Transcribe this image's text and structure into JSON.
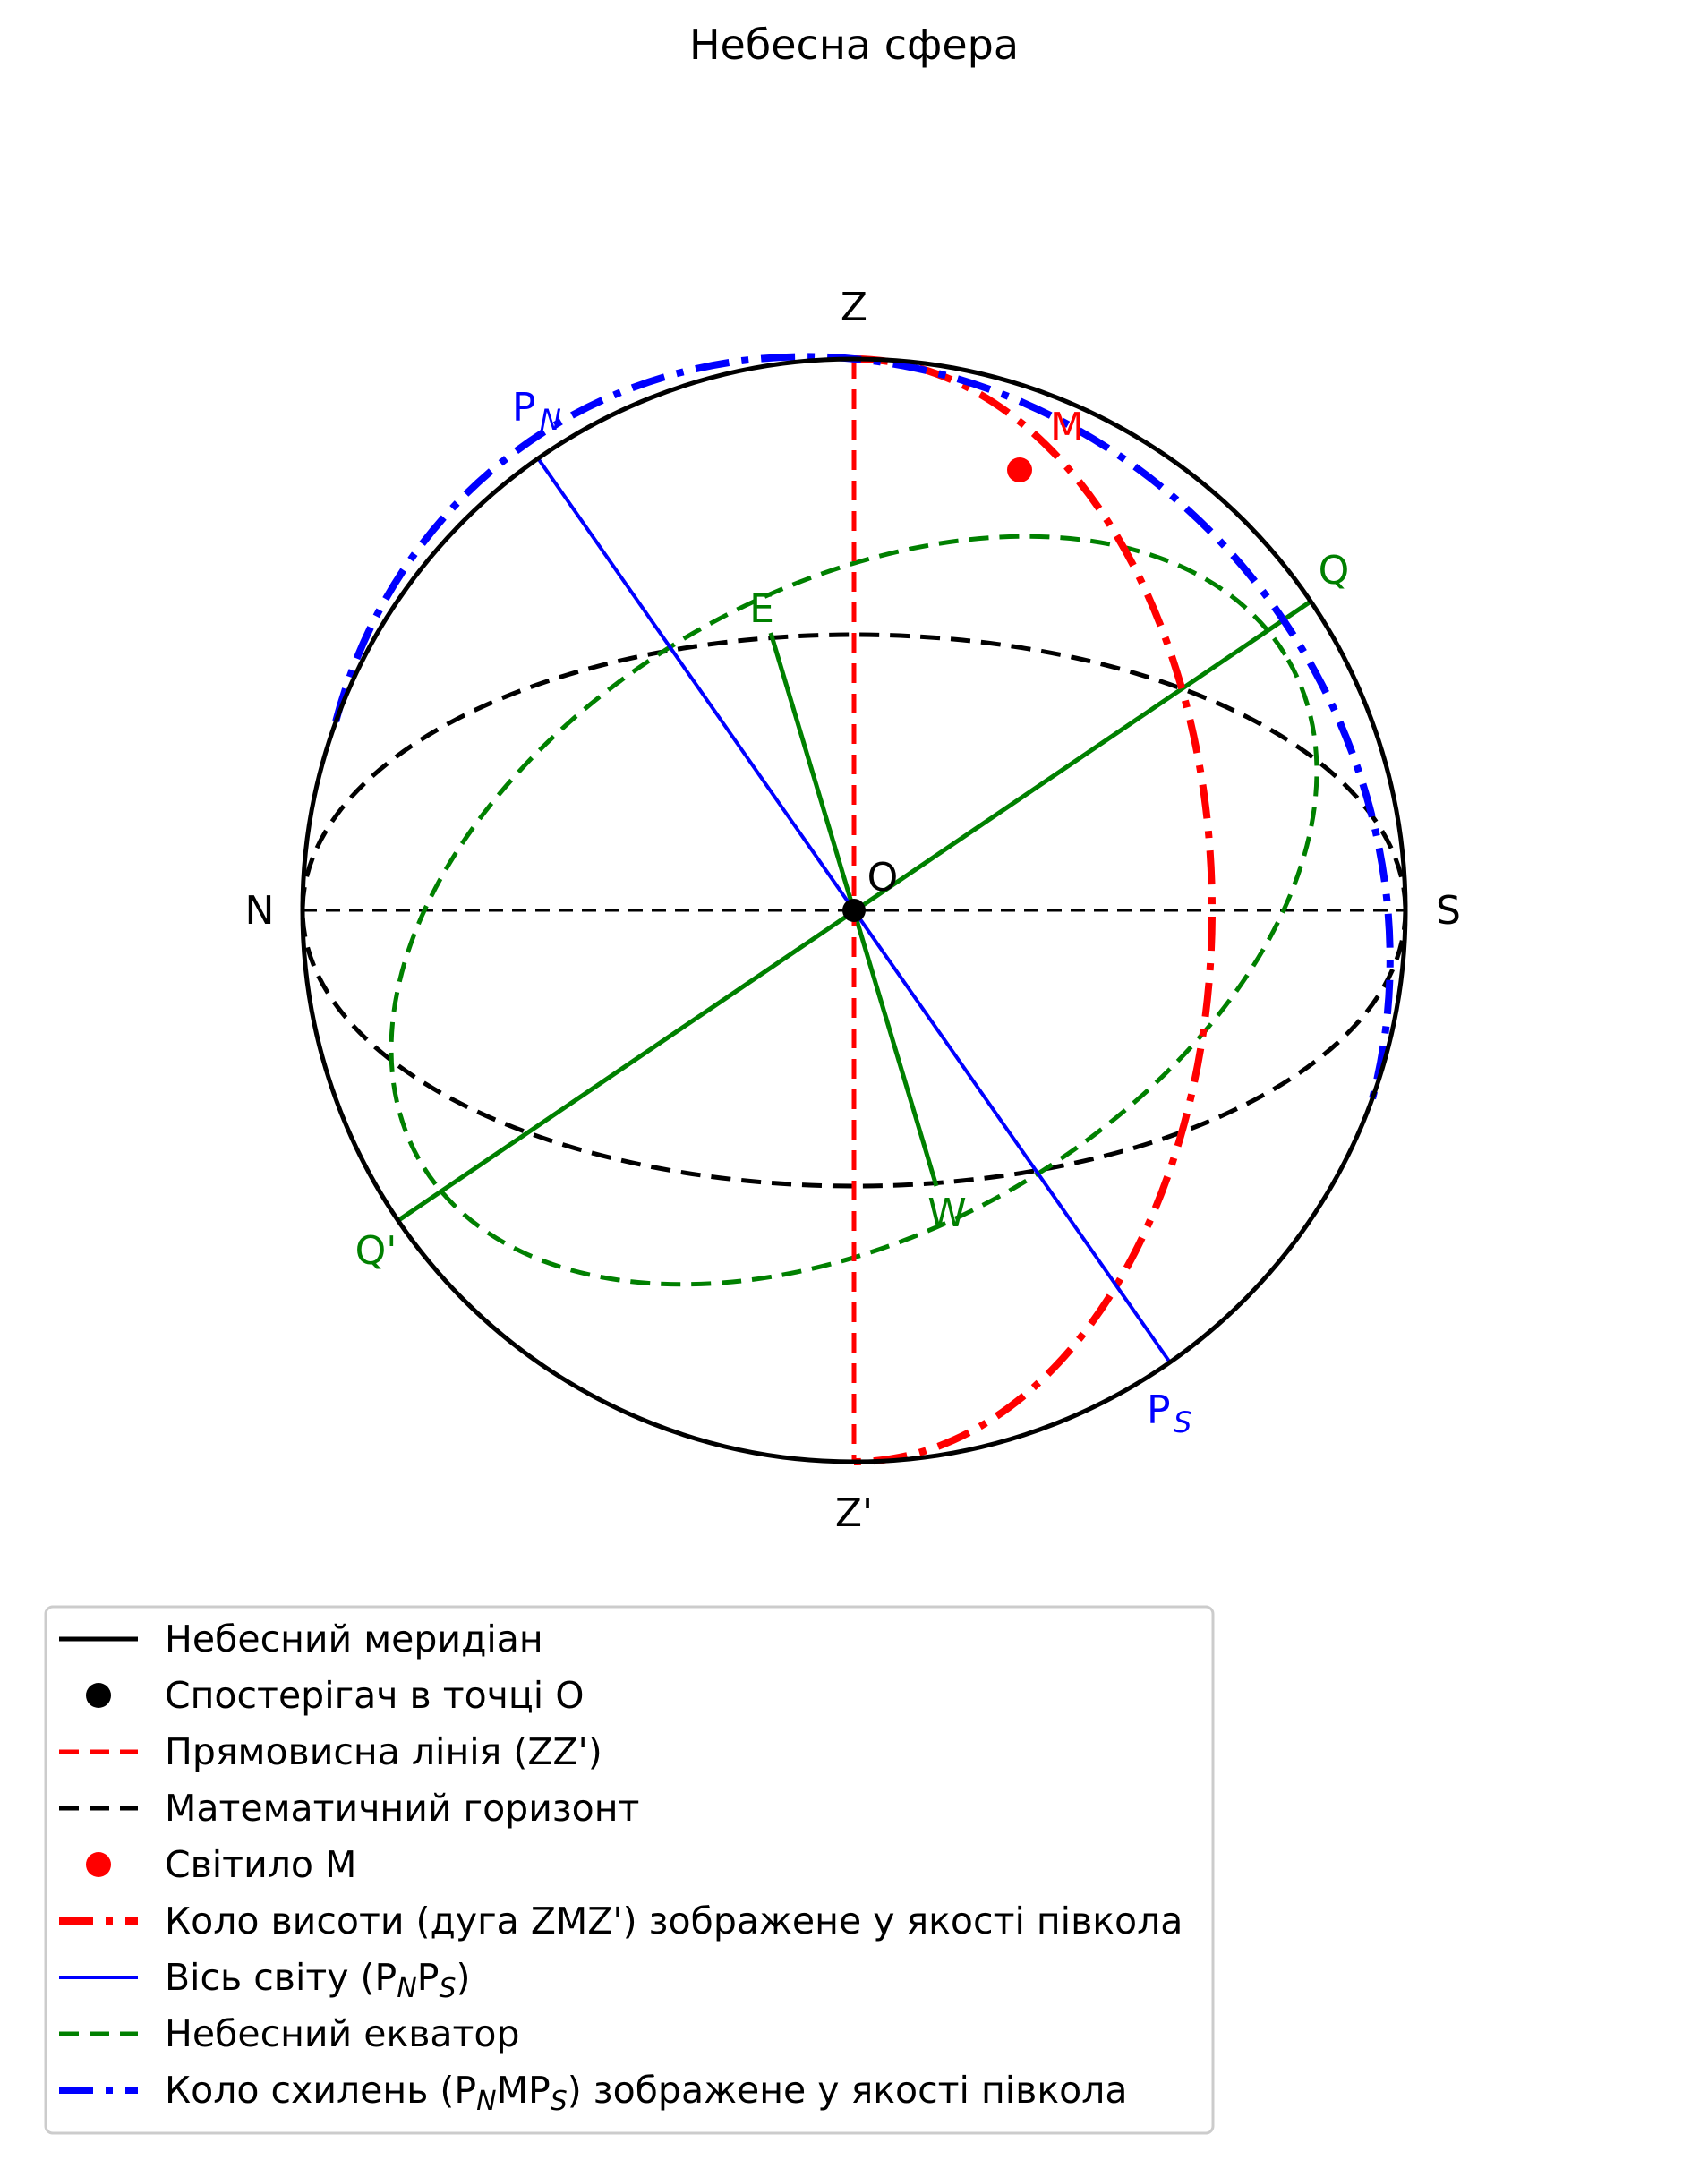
{
  "title": "Небесна сфера",
  "colors": {
    "black": "#000000",
    "red": "#ff0000",
    "blue": "#0000ff",
    "green": "#008000"
  },
  "points": {
    "Z": "Z",
    "Z_prime": "Z'",
    "N": "N",
    "S": "S",
    "O": "O",
    "M": "M",
    "E": "E",
    "W": "W",
    "Q": "Q",
    "Q_prime": "Q'",
    "P": "P",
    "sub_N": "N",
    "sub_S": "S"
  },
  "legend": {
    "meridian": "Небесний меридіан",
    "observer": "Спостерігач в точці О",
    "vertical": "Прямовисна лінія (ZZ')",
    "horizon": "Математичний горизонт",
    "star": "Світило М",
    "altitude_circle": "Коло висоти (дуга ZMZ') зображене у якості півкола",
    "axis_prefix": "Вісь світу (P",
    "axis_mid": "P",
    "axis_suffix": ")",
    "equator": "Небесний екватор",
    "declination_prefix": "Коло схилень (P",
    "declination_mid": "MP",
    "declination_suffix": ") зображене у якості півкола"
  }
}
